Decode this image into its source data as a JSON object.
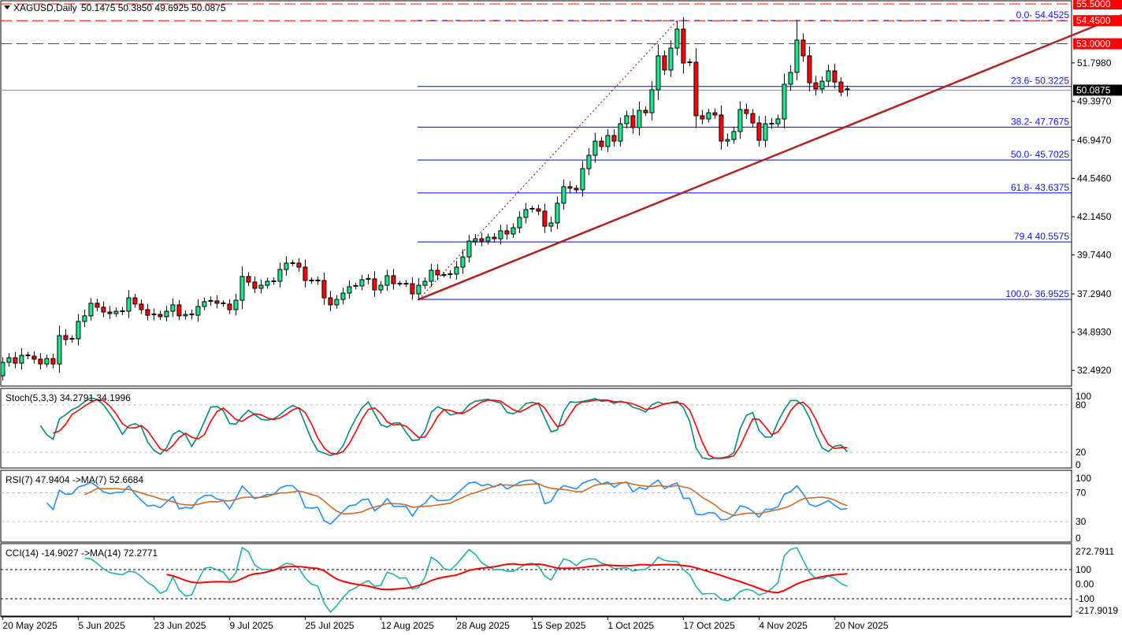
{
  "header": {
    "symbol": "XAGUSD,Daily",
    "ohlc_text": "50.1475 50.3850 49.6925 50.0875"
  },
  "colors": {
    "bull": "#19e68c",
    "bear": "#ff0000",
    "fib": "#0000ff",
    "trend": "#b22222",
    "stoch_main": "#008b80",
    "stoch_signal": "#ff0000",
    "rsi": "#1e90ff",
    "rsi_ma": "#d2691e",
    "cci": "#20b2aa",
    "cci_ma": "#ff0000"
  },
  "chart_data": {
    "type": "candlestick",
    "symbol": "XAGUSD",
    "timeframe": "Daily",
    "ylim": [
      32.0,
      55.5
    ],
    "first_open": 32.16,
    "last_candle": {
      "open": 50.1475,
      "high": 50.385,
      "low": 49.6925,
      "close": 50.0875
    },
    "closes": [
      33.0,
      33.29,
      32.95,
      33.44,
      33.39,
      33.2,
      32.9,
      33.24,
      32.9,
      34.68,
      34.43,
      34.48,
      35.57,
      35.92,
      36.71,
      36.46,
      36.16,
      36.06,
      36.21,
      36.21,
      37.05,
      36.66,
      36.31,
      35.96,
      36.01,
      35.87,
      36.21,
      36.61,
      35.92,
      36.01,
      35.96,
      36.51,
      36.81,
      36.86,
      36.71,
      36.66,
      36.31,
      36.9,
      38.39,
      38.04,
      37.65,
      37.84,
      38.09,
      38.09,
      38.83,
      39.23,
      39.23,
      38.98,
      38.14,
      38.09,
      38.14,
      37.05,
      36.61,
      36.95,
      37.35,
      37.75,
      37.8,
      38.19,
      38.24,
      37.55,
      37.84,
      38.44,
      37.94,
      37.94,
      37.94,
      37.3,
      37.84,
      38.09,
      38.78,
      38.49,
      38.49,
      38.54,
      38.98,
      39.62,
      40.61,
      40.76,
      40.61,
      40.86,
      40.76,
      41.26,
      41.06,
      41.45,
      42.1,
      42.59,
      42.64,
      42.49,
      41.55,
      41.75,
      42.99,
      44.03,
      43.93,
      43.83,
      45.16,
      46.0,
      46.89,
      46.55,
      47.24,
      46.89,
      47.98,
      48.48,
      47.74,
      48.82,
      48.67,
      50.11,
      52.24,
      51.35,
      52.73,
      53.92,
      51.79,
      51.84,
      48.48,
      48.28,
      48.67,
      48.53,
      46.89,
      46.99,
      47.49,
      48.87,
      48.62,
      48.03,
      46.94,
      47.98,
      47.98,
      48.28,
      50.46,
      51.2,
      53.23,
      52.24,
      50.55,
      50.16,
      50.65,
      51.3,
      50.6,
      49.96,
      50.0875
    ],
    "peak_highs": {
      "108": 54.45,
      "127": 54.5
    },
    "price_axis_ticks": [
      "51.7980",
      "49.3970",
      "46.9470",
      "44.5460",
      "42.1450",
      "39.7440",
      "37.2940",
      "34.8930",
      "32.4920"
    ],
    "price_ticks_values": [
      51.798,
      49.397,
      46.947,
      44.546,
      42.145,
      39.744,
      37.294,
      34.893,
      32.492
    ],
    "date_labels": [
      "20 May 2025",
      "5 Jun 2025",
      "23 Jun 2025",
      "9 Jul 2025",
      "25 Jul 2025",
      "12 Aug 2025",
      "28 Aug 2025",
      "15 Sep 2025",
      "1 Oct 2025",
      "17 Oct 2025",
      "4 Nov 2025",
      "20 Nov 2025"
    ],
    "horizontal_levels": [
      {
        "price": 55.5,
        "label": "55.5000"
      },
      {
        "price": 54.45,
        "label": "54.4500"
      },
      {
        "price": 53.0,
        "label": "53.0000"
      }
    ],
    "current_price": {
      "price": 50.0875,
      "label": "50.0875"
    },
    "fibonacci": {
      "from": 36.9525,
      "to": 54.4525,
      "levels": [
        {
          "price": 54.4525,
          "label": "0.0- 54.4525"
        },
        {
          "price": 50.3225,
          "label": "23.6- 50.3225"
        },
        {
          "price": 47.7675,
          "label": "38.2- 47.7675"
        },
        {
          "price": 45.7025,
          "label": "50.0- 45.7025"
        },
        {
          "price": 43.6375,
          "label": "61.8- 43.6375"
        },
        {
          "price": 40.5575,
          "label": "79.4 40.5575"
        },
        {
          "price": 36.9525,
          "label": "100.0- 36.9525"
        }
      ]
    },
    "trendline": {
      "from": {
        "bar": 66,
        "price": 36.9525
      },
      "through": {
        "bar": 121,
        "price": 45.75
      }
    },
    "indicators": {
      "stoch": {
        "label": "Stoch(5,3,3) 34.2791 34.1996",
        "k": 5,
        "d": 3,
        "slow": 3,
        "levels": [
          "100",
          "80",
          "20",
          "0"
        ],
        "level_values": [
          100,
          80,
          20,
          0
        ]
      },
      "rsi": {
        "label": "RSI(7) 47.9404  ->MA(7) 52.6684",
        "period": 7,
        "ma": 7,
        "levels": [
          "100",
          "70",
          "30",
          "0"
        ],
        "level_values": [
          100,
          70,
          30,
          0
        ]
      },
      "cci": {
        "label": "CCI(14) -14.9027  ->MA(14) 72.2771",
        "period": 14,
        "ma": 14,
        "levels": [
          "272.7911",
          "100",
          "0.00",
          "-100",
          "-217.9019"
        ],
        "level_values": [
          272.7911,
          100,
          0,
          -100,
          -217.9019
        ]
      }
    }
  }
}
